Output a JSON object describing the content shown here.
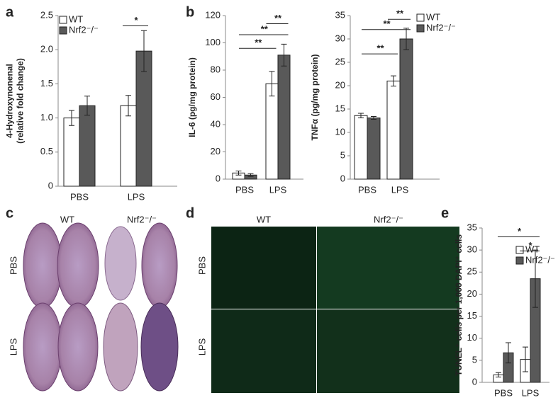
{
  "chart_data": [
    {
      "type": "bar",
      "panel": "a",
      "ylabel": [
        "4-Hydroxynonenal",
        "(relative fold change)"
      ],
      "categories": [
        "PBS",
        "LPS"
      ],
      "series": [
        {
          "name": "WT",
          "color": "#ffffff",
          "values": [
            1.0,
            1.18
          ],
          "errors": [
            0.11,
            0.15
          ]
        },
        {
          "name": "Nrf2⁻/⁻",
          "color": "#595959",
          "values": [
            1.18,
            1.98
          ],
          "errors": [
            0.14,
            0.3
          ]
        }
      ],
      "ylim": [
        0,
        2.5
      ],
      "yticks": [
        0,
        0.5,
        {
          "value": 1,
          "label": "1.0"
        },
        1.5,
        {
          "value": 2,
          "label": "2.0"
        },
        2.5
      ],
      "legend": "top-left",
      "annotations": [
        "*"
      ]
    },
    {
      "type": "bar",
      "panel": "b",
      "ylabel": [
        "IL-6 (pg/mg protein)"
      ],
      "categories": [
        "PBS",
        "LPS"
      ],
      "series": [
        {
          "name": "WT",
          "color": "#ffffff",
          "values": [
            4.5,
            70
          ],
          "errors": [
            1.5,
            9
          ]
        },
        {
          "name": "Nrf2⁻/⁻",
          "color": "#595959",
          "values": [
            3,
            91
          ],
          "errors": [
            1,
            8
          ]
        }
      ],
      "ylim": [
        0,
        120
      ],
      "yticks": [
        0,
        20,
        40,
        60,
        80,
        100,
        120
      ],
      "legend": "none",
      "annotations": [
        "**",
        "**",
        "**"
      ]
    },
    {
      "type": "bar",
      "ylabel": [
        "TNFα (pg/mg protein)"
      ],
      "categories": [
        "PBS",
        "LPS"
      ],
      "series": [
        {
          "name": "WT",
          "color": "#ffffff",
          "values": [
            13.6,
            21
          ],
          "errors": [
            0.5,
            1.1
          ]
        },
        {
          "name": "Nrf2⁻/⁻",
          "color": "#595959",
          "values": [
            13.1,
            30
          ],
          "errors": [
            0.3,
            2.3
          ]
        }
      ],
      "ylim": [
        0,
        35
      ],
      "yticks": [
        0,
        5,
        10,
        15,
        20,
        25,
        30,
        35
      ],
      "legend": "top-right",
      "annotations": [
        "**",
        "**",
        "**"
      ]
    },
    {
      "type": "bar",
      "panel": "e",
      "ylabel": [
        "TUNEL⁺ cells per 1,000 DAPI⁺ cells"
      ],
      "categories": [
        "PBS",
        "LPS"
      ],
      "series": [
        {
          "name": "WT",
          "color": "#ffffff",
          "values": [
            1.7,
            5.2
          ],
          "errors": [
            0.5,
            2.8
          ]
        },
        {
          "name": "Nrf2⁻/⁻",
          "color": "#595959",
          "values": [
            6.7,
            23.5
          ],
          "errors": [
            2.3,
            6.5
          ]
        }
      ],
      "ylim": [
        0,
        35
      ],
      "yticks": [
        0,
        5,
        10,
        15,
        20,
        25,
        30,
        35
      ],
      "legend": "top-right",
      "annotations": [
        "*",
        "*"
      ]
    }
  ],
  "image_panels": [
    {
      "panel": "c",
      "columns": [
        "WT",
        "Nrf2⁻/⁻"
      ],
      "rows": [
        "PBS",
        "LPS"
      ]
    },
    {
      "panel": "d",
      "columns": [
        "WT",
        "Nrf2⁻/⁻"
      ],
      "rows": [
        "PBS",
        "LPS"
      ]
    }
  ]
}
